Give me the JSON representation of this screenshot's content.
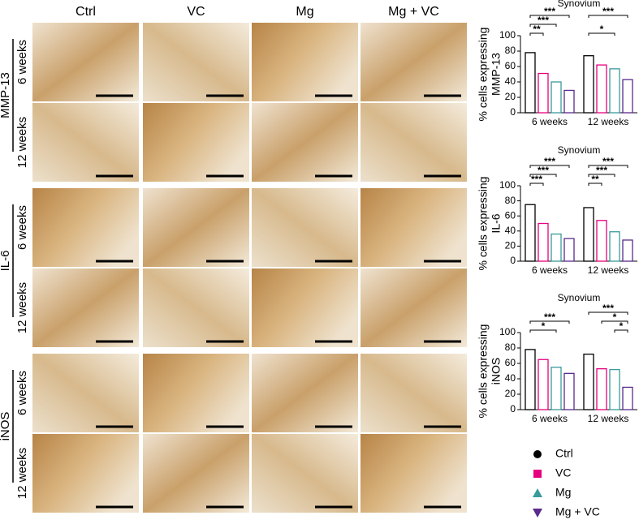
{
  "panels": {
    "columns": [
      "Ctrl",
      "VC",
      "Mg",
      "Mg + VC"
    ],
    "rows": [
      "6 weeks",
      "12 weeks",
      "6 weeks",
      "12 weeks",
      "6 weeks",
      "12 weeks"
    ],
    "groups": [
      "MMP-13",
      "IL-6",
      "iNOS"
    ]
  },
  "chart_data": [
    {
      "type": "bar",
      "title": "Synovium",
      "ylabel": [
        "% cells expressing",
        "MMP-13"
      ],
      "categories": [
        "6 weeks",
        "12 weeks"
      ],
      "series": [
        {
          "values": [
            78,
            74
          ]
        },
        {
          "values": [
            51,
            62
          ]
        },
        {
          "values": [
            40,
            57
          ]
        },
        {
          "values": [
            29,
            43
          ]
        }
      ],
      "ylim": [
        0,
        100
      ],
      "yticks": [
        0,
        20,
        40,
        60,
        80,
        100
      ],
      "annotations": [
        "**",
        "***",
        "***",
        "*",
        "***"
      ]
    },
    {
      "type": "bar",
      "title": "Synovium",
      "ylabel": [
        "% cells expressing",
        "IL-6"
      ],
      "categories": [
        "6 weeks",
        "12 weeks"
      ],
      "series": [
        {
          "values": [
            75,
            71
          ]
        },
        {
          "values": [
            50,
            54
          ]
        },
        {
          "values": [
            36,
            39
          ]
        },
        {
          "values": [
            30,
            28
          ]
        }
      ],
      "ylim": [
        0,
        100
      ],
      "yticks": [
        0,
        20,
        40,
        60,
        80,
        100
      ],
      "annotations": [
        "***",
        "***",
        "***",
        "**",
        "***",
        "***"
      ]
    },
    {
      "type": "bar",
      "title": "Synovium",
      "ylabel": [
        "% cells expressing",
        "iNOS"
      ],
      "categories": [
        "6 weeks",
        "12 weeks"
      ],
      "series": [
        {
          "values": [
            78,
            72
          ]
        },
        {
          "values": [
            65,
            53
          ]
        },
        {
          "values": [
            55,
            52
          ]
        },
        {
          "values": [
            47,
            29
          ]
        }
      ],
      "ylim": [
        0,
        100
      ],
      "yticks": [
        0,
        20,
        40,
        60,
        80,
        100
      ],
      "annotations": [
        "*",
        "***",
        "*",
        "*",
        "***"
      ]
    }
  ],
  "legend": [
    {
      "name": "Ctrl",
      "color": "#000000",
      "marker": "circle"
    },
    {
      "name": "VC",
      "color": "#e6007e",
      "marker": "square"
    },
    {
      "name": "Mg",
      "color": "#3a9a9c",
      "marker": "triangle-up"
    },
    {
      "name": "Mg + VC",
      "color": "#5a2a8c",
      "marker": "triangle-down"
    }
  ]
}
